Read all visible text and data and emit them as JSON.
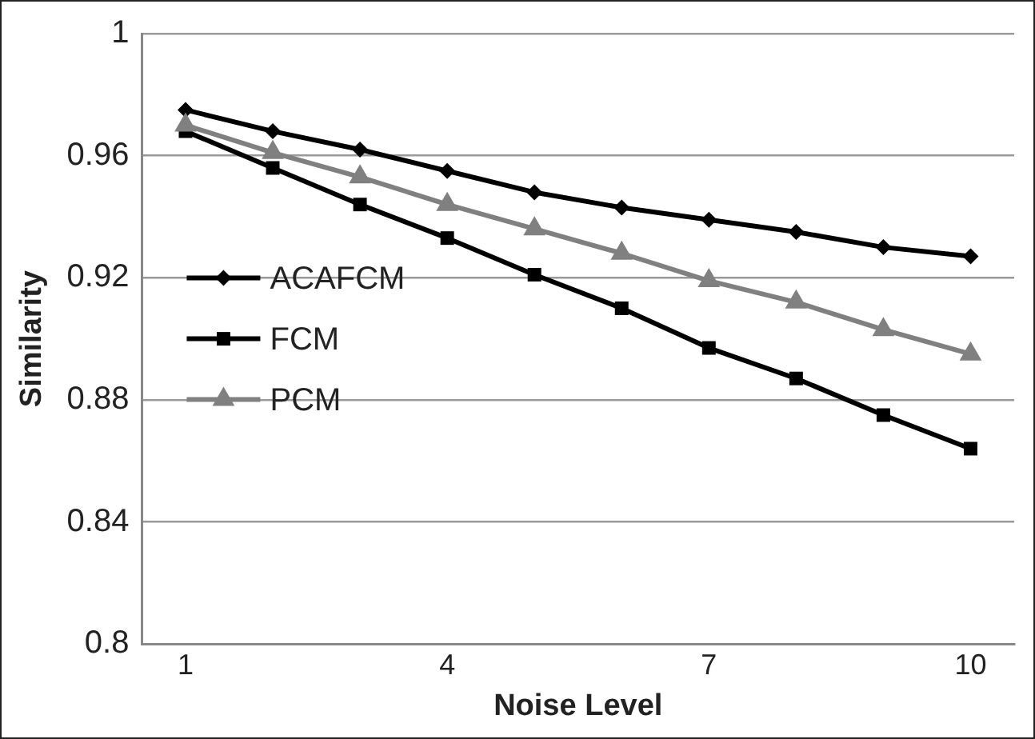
{
  "chart_data": {
    "type": "line",
    "xlabel": "Noise Level",
    "ylabel": "Similarity",
    "x": [
      1,
      2,
      3,
      4,
      5,
      6,
      7,
      8,
      9,
      10
    ],
    "xlim": [
      0.5,
      10.5
    ],
    "xticks": [
      1,
      4,
      7,
      10
    ],
    "ylim": [
      0.8,
      1
    ],
    "yticks": [
      0.8,
      0.84,
      0.88,
      0.92,
      0.96,
      1
    ],
    "grid": "y",
    "legend": "left",
    "series": [
      {
        "name": "ACAFCM",
        "color": "#000000",
        "marker": "diamond",
        "values": [
          0.975,
          0.968,
          0.962,
          0.955,
          0.948,
          0.943,
          0.939,
          0.935,
          0.93,
          0.927
        ]
      },
      {
        "name": "FCM",
        "color": "#000000",
        "marker": "square",
        "values": [
          0.968,
          0.956,
          0.944,
          0.933,
          0.921,
          0.91,
          0.897,
          0.887,
          0.875,
          0.864
        ]
      },
      {
        "name": "PCM",
        "color": "#808080",
        "marker": "triangle",
        "values": [
          0.97,
          0.961,
          0.953,
          0.944,
          0.936,
          0.928,
          0.919,
          0.912,
          0.903,
          0.895
        ]
      }
    ]
  }
}
